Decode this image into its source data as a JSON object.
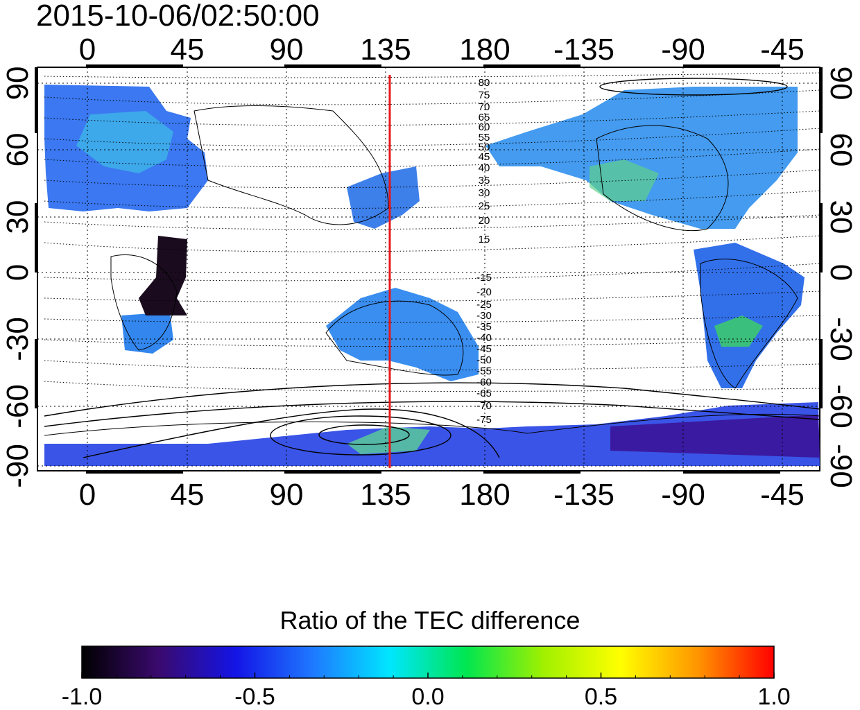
{
  "title": "2015-10-06/02:50:00",
  "map": {
    "lon_ticks": [
      "0",
      "45",
      "90",
      "135",
      "180",
      "-135",
      "-90",
      "-45"
    ],
    "lat_ticks": [
      "90",
      "60",
      "30",
      "0",
      "-30",
      "-60",
      "-90"
    ],
    "contour_labels_north": [
      "80",
      "75",
      "70",
      "65",
      "60",
      "55",
      "50",
      "45",
      "40",
      "35",
      "30",
      "25",
      "20",
      "15"
    ],
    "contour_labels_south": [
      "-15",
      "-20",
      "-25",
      "-30",
      "-35",
      "-40",
      "-45",
      "-50",
      "-55",
      "-60",
      "-65",
      "-70",
      "-75"
    ],
    "marker_line_color": "#e8181a",
    "marker_longitude": 137
  },
  "colorbar": {
    "title": "Ratio of the TEC difference",
    "tick_labels": [
      "-1.0",
      "-0.5",
      "0.0",
      "0.5",
      "1.0"
    ],
    "range": [
      -1.0,
      1.0
    ],
    "colors": [
      "#000000",
      "#3a0a6e",
      "#1414e6",
      "#1e78ff",
      "#00e6ff",
      "#00e650",
      "#a0f000",
      "#ffff00",
      "#ff9600",
      "#ff0000"
    ]
  }
}
